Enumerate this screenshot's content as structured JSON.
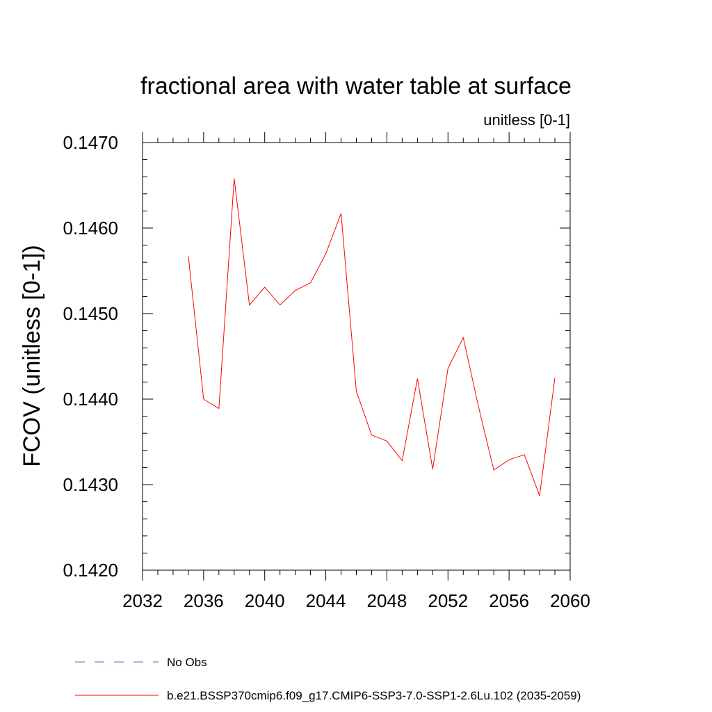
{
  "chart_data": {
    "type": "line",
    "title": "fractional area with water table at surface",
    "subtitle": "unitless [0-1]",
    "ylabel": "FCOV  (unitless [0-1])",
    "xlabel": "",
    "xlim": [
      2032,
      2060
    ],
    "ylim": [
      0.142,
      0.147
    ],
    "x_ticks": [
      2032,
      2036,
      2040,
      2044,
      2048,
      2052,
      2056,
      2060
    ],
    "x_tick_labels": [
      "2032",
      "2036",
      "2040",
      "2044",
      "2048",
      "2052",
      "2056",
      "2060"
    ],
    "y_ticks": [
      0.142,
      0.143,
      0.144,
      0.145,
      0.146,
      0.147
    ],
    "y_tick_labels": [
      "0.1420",
      "0.1430",
      "0.1440",
      "0.1450",
      "0.1460",
      "0.1470"
    ],
    "grid": false,
    "legend_position": "bottom-left",
    "series": [
      {
        "name": "b.e21.BSSP370cmip6.f09_g17.CMIP6-SSP3-7.0-SSP1-2.6Lu.102 (2035-2059)",
        "color": "#ff0000",
        "style": "solid",
        "x": [
          2035,
          2036,
          2037,
          2038,
          2039,
          2040,
          2041,
          2042,
          2043,
          2044,
          2045,
          2046,
          2047,
          2048,
          2049,
          2050,
          2051,
          2052,
          2053,
          2054,
          2055,
          2056,
          2057,
          2058,
          2059
        ],
        "y": [
          0.14567,
          0.144,
          0.14389,
          0.14658,
          0.1451,
          0.14531,
          0.1451,
          0.14527,
          0.14536,
          0.1457,
          0.14617,
          0.14409,
          0.14358,
          0.14351,
          0.14328,
          0.14424,
          0.14318,
          0.14436,
          0.14472,
          0.14391,
          0.14317,
          0.14329,
          0.14335,
          0.14287,
          0.14425
        ]
      }
    ],
    "legend": [
      {
        "label": "No Obs",
        "color": "#6a5acd",
        "style": "dashed"
      },
      {
        "label": "b.e21.BSSP370cmip6.f09_g17.CMIP6-SSP3-7.0-SSP1-2.6Lu.102 (2035-2059)",
        "color": "#ff0000",
        "style": "solid"
      }
    ]
  }
}
